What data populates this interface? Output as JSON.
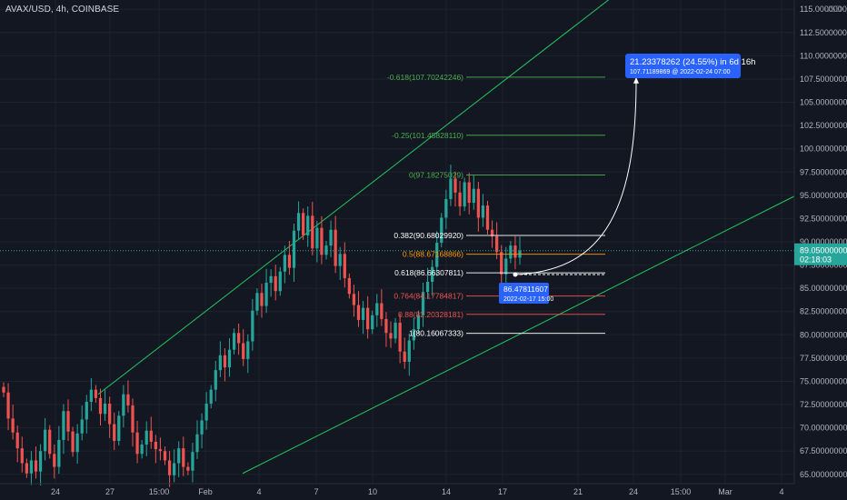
{
  "header": {
    "symbol": "AVAX/USD, 4h, COINBASE",
    "currency": "USD"
  },
  "colors": {
    "background": "#131722",
    "up": "#26a69a",
    "down": "#ef5350",
    "channel": "#22c55e",
    "projection": "#ffffff",
    "label_bg": "#2962ff"
  },
  "chart_data": {
    "type": "candlestick",
    "y_axis": {
      "ylim": [
        64,
        116
      ],
      "ticks": [
        65,
        67.5,
        70,
        72.5,
        75,
        77.5,
        80,
        82.5,
        85,
        87.5,
        90,
        92.5,
        95,
        97.5,
        100,
        102.5,
        105,
        107.5,
        110,
        112.5,
        115
      ],
      "tick_labels": [
        "65.00000000",
        "67.50000000",
        "70.00000000",
        "72.50000000",
        "75.00000000",
        "77.50000000",
        "80.00000000",
        "82.50000000",
        "85.00000000",
        "87.50000000",
        "90.00000000",
        "92.50000000",
        "95.00000000",
        "97.50000000",
        "100.00000000",
        "102.50000000",
        "105.00000000",
        "107.50000000",
        "110.00000000",
        "112.50000000",
        "115.00000000"
      ]
    },
    "x_axis": {
      "labels": [
        "24",
        "27",
        "15:00",
        "Feb",
        "4",
        "7",
        "10",
        "14",
        "17",
        "21",
        "24",
        "15:00",
        "Mar",
        "4"
      ]
    },
    "last_price": {
      "value": "89.05000000",
      "countdown": "02:18:03"
    },
    "price_path": [
      73.8,
      71,
      69.5,
      67.8,
      66.2,
      65.1,
      66.5,
      65.3,
      67.5,
      69.8,
      67.2,
      65.8,
      68.7,
      71.8,
      69.6,
      67.4,
      69.4,
      70.9,
      72.8,
      74.1,
      73.2,
      71.5,
      72.6,
      70.4,
      68.6,
      71.3,
      73.6,
      72.4,
      69.5,
      67.2,
      68.2,
      69.7,
      68.5,
      67.7,
      67.5,
      66.5,
      64.9,
      66.2,
      67.8,
      65.8,
      65.4,
      67.4,
      69.3,
      70.8,
      72.6,
      74.1,
      76.2,
      77.8,
      76.5,
      78.4,
      80.2,
      79.1,
      77.4,
      79.3,
      82.6,
      84.5,
      83.1,
      85.6,
      86.3,
      84.7,
      86.8,
      88.6,
      87.2,
      91.2,
      93.1,
      90.7,
      92.8,
      89.3,
      91.5,
      88.6,
      89.6,
      91.3,
      87.4,
      88.7,
      86.1,
      84.4,
      83.2,
      81.6,
      82.9,
      80.6,
      82.1,
      83.4,
      81.7,
      80.2,
      79.6,
      81.3,
      78.2,
      77.1,
      79.4,
      80.6,
      82.1,
      84.6,
      85.7,
      87.3,
      89.9,
      92.6,
      94.6,
      96.8,
      95.3,
      93.8,
      96.4,
      94.2,
      95.7,
      92.6,
      93.9,
      91.3,
      90.6,
      88.9,
      86.5,
      88.2,
      89.6,
      88.3,
      89.05
    ],
    "fibonacci": [
      {
        "label": "-0.618(107.70242246)",
        "value": 107.70242246,
        "color": "#4caf50"
      },
      {
        "label": "-0.25(101.45828110)",
        "value": 101.4582811,
        "color": "#4caf50"
      },
      {
        "label": "0(97.18275029)",
        "value": 97.18275029,
        "color": "#4caf50"
      },
      {
        "label": "0.382(90.68029920)",
        "value": 90.6802992,
        "color": "#ffffff"
      },
      {
        "label": "0.5(88.67168866)",
        "value": 88.67168866,
        "color": "#ff9800"
      },
      {
        "label": "0.618(86.66307811)",
        "value": 86.66307811,
        "color": "#ffffff"
      },
      {
        "label": "0.764(84.17784817)",
        "value": 84.17784817,
        "color": "#ef5350"
      },
      {
        "label": "0.88(82.20328181)",
        "value": 82.20328181,
        "color": "#ef5350"
      },
      {
        "label": "1(80.16067333)",
        "value": 80.16067333,
        "color": "#ffffff"
      }
    ],
    "projection": {
      "start_label": "86.47811607",
      "start_date": "2022-02-17 15:00",
      "start_value": 86.47811607,
      "end_value": 107.71189869,
      "end_label_line1": "21.23378262 (24.55%) in 6d 16h",
      "end_label_line2": "107.71189869 @ 2022-02-24  07:00"
    },
    "channel": {
      "upper": [
        [
          0,
          73.6
        ],
        [
          1,
          121.5
        ]
      ],
      "lower": [
        [
          0,
          65.1
        ],
        [
          1,
          96.0
        ]
      ]
    }
  }
}
